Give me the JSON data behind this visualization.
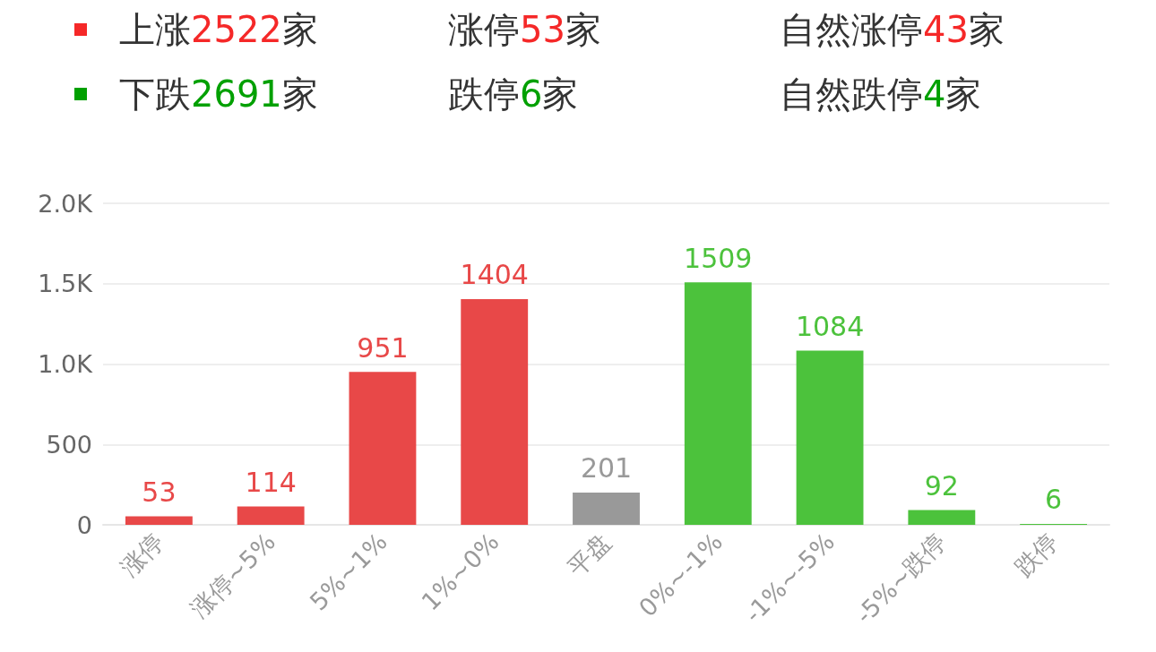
{
  "chart_data": {
    "type": "bar",
    "annotations": [
      "上涨2522家",
      "涨停53家",
      "自然涨停43家",
      "下跌2691家",
      "跌停6家",
      "自然跌停4家"
    ],
    "categories": [
      "涨停",
      "涨停~5%",
      "5%~1%",
      "1%~0%",
      "平盘",
      "0%~-1%",
      "-1%~-5%",
      "-5%~跌停",
      "跌停"
    ],
    "values": [
      53,
      114,
      951,
      1404,
      201,
      1509,
      1084,
      92,
      6
    ],
    "colors": [
      "#e84848",
      "#e84848",
      "#e84848",
      "#e84848",
      "#999999",
      "#4cc23c",
      "#4cc23c",
      "#4cc23c",
      "#4cc23c"
    ],
    "ylim": [
      0,
      2000
    ],
    "yticks": [
      0,
      500,
      {
        "value": 1000,
        "label": "1.0K"
      },
      {
        "value": 1500,
        "label": "1.5K"
      },
      {
        "value": 2000,
        "label": "2.0K"
      }
    ],
    "grid": "y",
    "data_labels": true
  }
}
